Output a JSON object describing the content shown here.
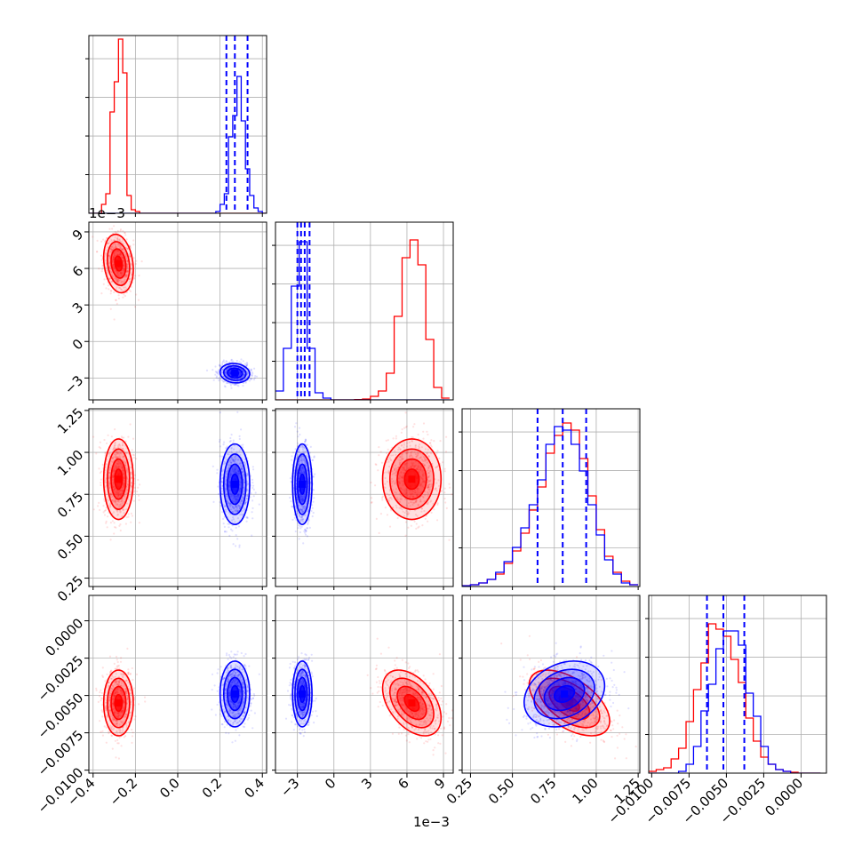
{
  "colors": {
    "red": "#ff0000",
    "blue": "#0000ff",
    "grid": "#b0b0b0",
    "axis": "#000000"
  },
  "chart_data": {
    "type": "corner",
    "title": "",
    "grid": true,
    "parameters": [
      {
        "range": [
          -0.42,
          0.42
        ],
        "ticks": [
          -0.4,
          -0.2,
          0.0,
          0.2,
          0.4
        ],
        "tick_labels": [
          "−0.4",
          "−0.2",
          "0.0",
          "0.2",
          "0.4"
        ],
        "offset_label": ""
      },
      {
        "range": [
          -0.0048,
          0.0098
        ],
        "ticks": [
          -0.003,
          0,
          0.003,
          0.006,
          0.009
        ],
        "tick_labels": [
          "−3",
          "0",
          "3",
          "6",
          "9"
        ],
        "offset_label": "1e−3"
      },
      {
        "range": [
          0.2,
          1.26
        ],
        "ticks": [
          0.25,
          0.5,
          0.75,
          1.0,
          1.25
        ],
        "tick_labels": [
          "0.25",
          "0.50",
          "0.75",
          "1.00",
          "1.25"
        ],
        "offset_label": ""
      },
      {
        "range": [
          -0.0102,
          0.0017
        ],
        "ticks": [
          -0.01,
          -0.0075,
          -0.005,
          -0.0025,
          0.0
        ],
        "tick_labels": [
          "−0.0100",
          "−0.0075",
          "−0.0050",
          "−0.0025",
          "0.0000"
        ],
        "offset_label": ""
      }
    ],
    "series": [
      {
        "color": "red",
        "mean": [
          -0.28,
          0.0064,
          0.84,
          -0.0055
        ],
        "sigma": [
          0.035,
          0.0012,
          0.12,
          0.0011
        ],
        "correlations": [
          [
            0,
            1,
            -0.2
          ],
          [
            2,
            3,
            -0.55
          ],
          [
            1,
            3,
            -0.45
          ]
        ]
      },
      {
        "color": "blue",
        "mean": [
          0.27,
          -0.0026,
          0.81,
          -0.0049
        ],
        "sigma": [
          0.035,
          0.0004,
          0.12,
          0.0011
        ],
        "correlations": [
          [
            0,
            1,
            -0.1
          ],
          [
            2,
            3,
            0.25
          ]
        ]
      }
    ],
    "marginals": [
      {
        "param": 0,
        "bins": [
          -0.42,
          -0.4,
          -0.38,
          -0.36,
          -0.34,
          -0.32,
          -0.3,
          -0.28,
          -0.26,
          -0.24,
          -0.22,
          -0.2,
          -0.18,
          -0.16,
          -0.14,
          -0.12,
          -0.1,
          -0.08,
          -0.06,
          -0.04,
          -0.02,
          0.0,
          0.02,
          0.04,
          0.06,
          0.08,
          0.1,
          0.12,
          0.14,
          0.16,
          0.18,
          0.2,
          0.22,
          0.24,
          0.26,
          0.28,
          0.3,
          0.32,
          0.34,
          0.36,
          0.38,
          0.4,
          0.42
        ],
        "red": [
          0,
          0,
          0,
          0.05,
          0.11,
          0.57,
          0.74,
          0.98,
          0.79,
          0.1,
          0.02,
          0.01,
          0,
          0,
          0,
          0,
          0,
          0,
          0,
          0,
          0,
          0,
          0,
          0,
          0,
          0,
          0,
          0,
          0,
          0,
          0,
          0,
          0,
          0,
          0,
          0,
          0,
          0,
          0,
          0,
          0,
          0
        ],
        "blue": [
          0,
          0,
          0,
          0,
          0,
          0,
          0,
          0,
          0,
          0,
          0,
          0,
          0,
          0,
          0,
          0,
          0,
          0,
          0,
          0,
          0,
          0,
          0,
          0,
          0,
          0,
          0,
          0,
          0,
          0,
          0.01,
          0.05,
          0.11,
          0.43,
          0.55,
          0.77,
          0.52,
          0.25,
          0.1,
          0.03,
          0.01,
          0
        ],
        "quantiles": [
          0.23,
          0.27,
          0.33
        ]
      },
      {
        "param": 1,
        "bins": [
          -0.0048,
          -0.00415,
          -0.0035,
          -0.00285,
          -0.0022,
          -0.00155,
          -0.0009,
          -0.00025,
          0.0004,
          0.00105,
          0.0017,
          0.00235,
          0.003,
          0.00365,
          0.0043,
          0.00495,
          0.0056,
          0.00625,
          0.0069,
          0.00755,
          0.0082,
          0.00885,
          0.0095
        ],
        "red": [
          0,
          0,
          0,
          0,
          0,
          0,
          0,
          0,
          0,
          0,
          0.002,
          0.005,
          0.02,
          0.05,
          0.15,
          0.47,
          0.8,
          0.9,
          0.76,
          0.34,
          0.07,
          0.01
        ],
        "blue": [
          0.05,
          0.29,
          0.64,
          0.89,
          0.29,
          0.04,
          0.01,
          0,
          0,
          0,
          0,
          0,
          0,
          0,
          0,
          0,
          0,
          0,
          0,
          0,
          0,
          0
        ],
        "quantiles": [
          -0.003,
          -0.0027,
          -0.0024,
          -0.002
        ]
      },
      {
        "param": 2,
        "bins": [
          0.2,
          0.25,
          0.3,
          0.35,
          0.4,
          0.45,
          0.5,
          0.55,
          0.6,
          0.65,
          0.7,
          0.75,
          0.8,
          0.85,
          0.9,
          0.95,
          1.0,
          1.05,
          1.1,
          1.15,
          1.2,
          1.25
        ],
        "red": [
          0.005,
          0.01,
          0.02,
          0.04,
          0.07,
          0.13,
          0.2,
          0.3,
          0.43,
          0.56,
          0.75,
          0.85,
          0.92,
          0.88,
          0.72,
          0.51,
          0.32,
          0.17,
          0.08,
          0.03,
          0.01
        ],
        "blue": [
          0.004,
          0.01,
          0.02,
          0.04,
          0.08,
          0.14,
          0.22,
          0.33,
          0.46,
          0.6,
          0.8,
          0.9,
          0.88,
          0.8,
          0.65,
          0.46,
          0.29,
          0.15,
          0.07,
          0.02,
          0.01
        ],
        "quantiles": [
          0.65,
          0.8,
          0.94
        ]
      },
      {
        "param": 3,
        "bins": [
          -0.0102,
          -0.0097,
          -0.0092,
          -0.0087,
          -0.0082,
          -0.0077,
          -0.0072,
          -0.0067,
          -0.0062,
          -0.0057,
          -0.0052,
          -0.0047,
          -0.0042,
          -0.0037,
          -0.0032,
          -0.0027,
          -0.0022,
          -0.0017,
          -0.0012,
          -0.0007,
          -0.0002,
          0.0003,
          0.0008,
          0.0013
        ],
        "red": [
          0.01,
          0.02,
          0.03,
          0.08,
          0.14,
          0.29,
          0.47,
          0.62,
          0.84,
          0.81,
          0.77,
          0.64,
          0.51,
          0.31,
          0.18,
          0.09,
          0.05,
          0.02,
          0.01,
          0.005,
          0,
          0,
          0
        ],
        "blue": [
          0,
          0,
          0,
          0,
          0.01,
          0.05,
          0.15,
          0.35,
          0.5,
          0.7,
          0.8,
          0.8,
          0.72,
          0.45,
          0.32,
          0.15,
          0.05,
          0.02,
          0.01,
          0,
          0,
          0,
          0
        ],
        "quantiles": [
          -0.0063,
          -0.0052,
          -0.0038
        ]
      }
    ]
  }
}
